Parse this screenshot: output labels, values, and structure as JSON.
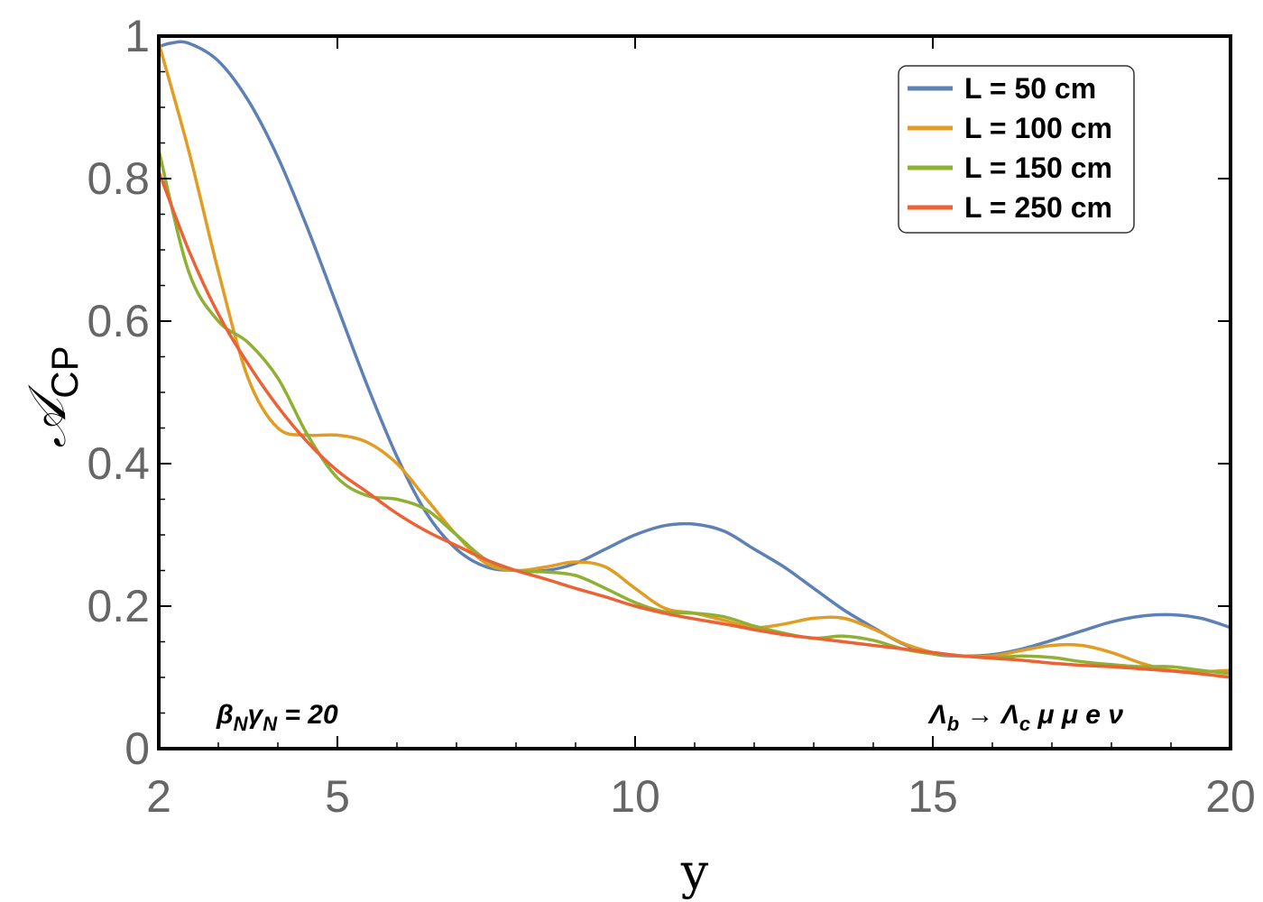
{
  "chart_data": {
    "type": "line",
    "title": "",
    "xlabel": "y",
    "ylabel": "𝒜",
    "ylabel_sub": "CP",
    "xlim": [
      2,
      20
    ],
    "ylim": [
      0,
      1
    ],
    "xticks": [
      {
        "value": 2,
        "label": "2"
      },
      {
        "value": 5,
        "label": "5"
      },
      {
        "value": 10,
        "label": "10"
      },
      {
        "value": 15,
        "label": "15"
      },
      {
        "value": 20,
        "label": "20"
      }
    ],
    "yticks": [
      {
        "value": 0,
        "label": "0"
      },
      {
        "value": 0.2,
        "label": "0.2"
      },
      {
        "value": 0.4,
        "label": "0.4"
      },
      {
        "value": 0.6,
        "label": "0.6"
      },
      {
        "value": 0.8,
        "label": "0.8"
      },
      {
        "value": 1,
        "label": "1"
      }
    ],
    "legend_position": "top-right",
    "annotations": {
      "left": "βNγN = 20",
      "right": "Λb → Λc μ μ e ν"
    },
    "series": [
      {
        "name": "L = 50 cm",
        "color": "#5e81b5",
        "x": [
          2,
          2.2,
          2.5,
          3,
          3.5,
          4,
          4.5,
          5,
          5.5,
          6,
          6.5,
          7,
          7.5,
          8,
          8.5,
          9,
          9.5,
          10,
          10.5,
          11,
          11.5,
          12,
          12.5,
          13,
          13.5,
          14,
          14.5,
          15,
          15.5,
          16,
          16.5,
          17,
          17.5,
          18,
          18.5,
          19,
          19.5,
          20
        ],
        "values": [
          0.985,
          0.99,
          0.99,
          0.965,
          0.91,
          0.83,
          0.73,
          0.62,
          0.51,
          0.41,
          0.33,
          0.28,
          0.255,
          0.25,
          0.25,
          0.26,
          0.28,
          0.3,
          0.313,
          0.315,
          0.305,
          0.28,
          0.255,
          0.225,
          0.195,
          0.17,
          0.147,
          0.133,
          0.13,
          0.132,
          0.14,
          0.152,
          0.165,
          0.178,
          0.186,
          0.188,
          0.183,
          0.17
        ]
      },
      {
        "name": "L = 100 cm",
        "color": "#e19c24",
        "x": [
          2,
          2.5,
          3,
          3.5,
          4,
          4.5,
          5,
          5.5,
          6,
          6.5,
          7,
          7.5,
          8,
          8.5,
          9,
          9.5,
          10,
          10.5,
          11,
          11.5,
          12,
          12.5,
          13,
          13.5,
          14,
          14.5,
          15,
          15.5,
          16,
          16.5,
          17,
          17.5,
          18,
          18.5,
          19,
          19.5,
          20
        ],
        "values": [
          0.99,
          0.84,
          0.67,
          0.52,
          0.45,
          0.44,
          0.44,
          0.43,
          0.4,
          0.35,
          0.3,
          0.26,
          0.25,
          0.255,
          0.262,
          0.255,
          0.225,
          0.197,
          0.19,
          0.18,
          0.17,
          0.175,
          0.183,
          0.183,
          0.168,
          0.148,
          0.135,
          0.13,
          0.13,
          0.138,
          0.145,
          0.145,
          0.135,
          0.12,
          0.11,
          0.108,
          0.11
        ]
      },
      {
        "name": "L = 150 cm",
        "color": "#8fb032",
        "x": [
          2,
          2.5,
          3,
          3.5,
          4,
          4.5,
          5,
          5.5,
          6,
          6.5,
          7,
          7.5,
          8,
          8.5,
          9,
          9.5,
          10,
          10.5,
          11,
          11.5,
          12,
          12.5,
          13,
          13.5,
          14,
          14.5,
          15,
          15.5,
          16,
          16.5,
          17,
          17.5,
          18,
          18.5,
          19,
          19.5,
          20
        ],
        "values": [
          0.84,
          0.67,
          0.6,
          0.57,
          0.52,
          0.44,
          0.38,
          0.355,
          0.35,
          0.335,
          0.3,
          0.265,
          0.25,
          0.248,
          0.243,
          0.225,
          0.205,
          0.192,
          0.19,
          0.185,
          0.172,
          0.162,
          0.155,
          0.158,
          0.152,
          0.14,
          0.133,
          0.13,
          0.128,
          0.13,
          0.128,
          0.122,
          0.118,
          0.115,
          0.115,
          0.11,
          0.105
        ]
      },
      {
        "name": "L = 250 cm",
        "color": "#eb6235",
        "x": [
          2,
          2.5,
          3,
          3.5,
          4,
          4.5,
          5,
          5.5,
          6,
          6.5,
          7,
          7.5,
          8,
          8.5,
          9,
          9.5,
          10,
          10.5,
          11,
          11.5,
          12,
          12.5,
          13,
          13.5,
          14,
          14.5,
          15,
          15.5,
          16,
          16.5,
          17,
          17.5,
          18,
          18.5,
          19,
          19.5,
          20
        ],
        "values": [
          0.81,
          0.7,
          0.61,
          0.54,
          0.48,
          0.43,
          0.39,
          0.36,
          0.33,
          0.305,
          0.285,
          0.265,
          0.25,
          0.238,
          0.225,
          0.213,
          0.2,
          0.19,
          0.182,
          0.175,
          0.167,
          0.16,
          0.155,
          0.15,
          0.145,
          0.14,
          0.135,
          0.13,
          0.127,
          0.124,
          0.12,
          0.117,
          0.115,
          0.112,
          0.109,
          0.105,
          0.1
        ]
      }
    ]
  }
}
